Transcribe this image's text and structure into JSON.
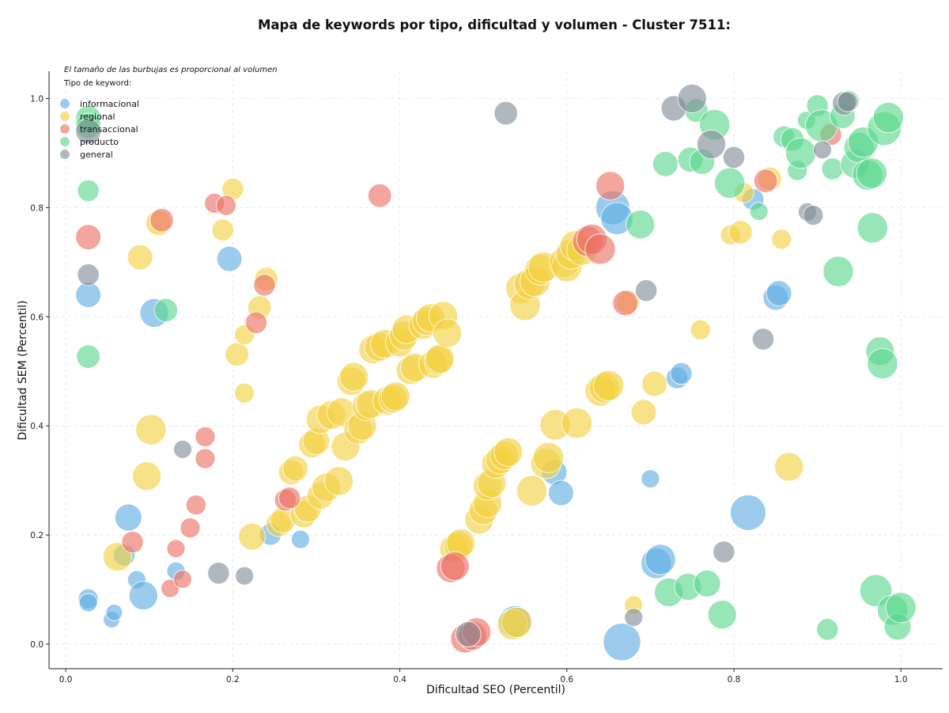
{
  "chart_data": {
    "type": "scatter",
    "title": "Mapa de keywords por tipo, dificultad y volumen - Cluster 7511:",
    "xlabel": "Dificultad SEO (Percentil)",
    "ylabel": "Dificultad SEM (Percentil)",
    "xlim": [
      -0.02,
      1.05
    ],
    "ylim": [
      -0.045,
      1.05
    ],
    "xticks": [
      "0.0",
      "0.2",
      "0.4",
      "0.6",
      "0.8",
      "1.0"
    ],
    "yticks": [
      "0.0",
      "0.2",
      "0.4",
      "0.6",
      "0.8",
      "1.0"
    ],
    "grid": true,
    "note": "El tamaño de las burbujas es proporcional al volumen",
    "legend_title": "Tipo de keyword:",
    "legend_position": "top-left",
    "series": [
      {
        "name": "informacional",
        "color": "#5DADE2",
        "points": [
          [
            0.027,
            0.083,
            0.3
          ],
          [
            0.027,
            0.076,
            0.25
          ],
          [
            0.027,
            0.64,
            0.45
          ],
          [
            0.055,
            0.045,
            0.2
          ],
          [
            0.058,
            0.058,
            0.2
          ],
          [
            0.07,
            0.163,
            0.35
          ],
          [
            0.075,
            0.232,
            0.5
          ],
          [
            0.085,
            0.118,
            0.25
          ],
          [
            0.093,
            0.089,
            0.55
          ],
          [
            0.106,
            0.607,
            0.55
          ],
          [
            0.132,
            0.134,
            0.25
          ],
          [
            0.196,
            0.706,
            0.45
          ],
          [
            0.245,
            0.201,
            0.35
          ],
          [
            0.281,
            0.192,
            0.25
          ],
          [
            0.538,
            0.041,
            0.65
          ],
          [
            0.585,
            0.315,
            0.45
          ],
          [
            0.593,
            0.277,
            0.45
          ],
          [
            0.655,
            0.8,
            0.7
          ],
          [
            0.66,
            0.78,
            0.65
          ],
          [
            0.666,
            0.004,
            0.8
          ],
          [
            0.7,
            0.303,
            0.25
          ],
          [
            0.707,
            0.148,
            0.6
          ],
          [
            0.712,
            0.155,
            0.6
          ],
          [
            0.732,
            0.488,
            0.35
          ],
          [
            0.737,
            0.496,
            0.35
          ],
          [
            0.817,
            0.241,
            0.75
          ],
          [
            0.823,
            0.815,
            0.35
          ],
          [
            0.85,
            0.635,
            0.45
          ],
          [
            0.854,
            0.643,
            0.45
          ]
        ]
      },
      {
        "name": "regional",
        "color": "#F4D03F",
        "points": [
          [
            0.062,
            0.16,
            0.55
          ],
          [
            0.089,
            0.709,
            0.45
          ],
          [
            0.097,
            0.308,
            0.55
          ],
          [
            0.102,
            0.393,
            0.6
          ],
          [
            0.111,
            0.772,
            0.45
          ],
          [
            0.188,
            0.759,
            0.35
          ],
          [
            0.2,
            0.834,
            0.35
          ],
          [
            0.205,
            0.531,
            0.4
          ],
          [
            0.214,
            0.567,
            0.3
          ],
          [
            0.214,
            0.46,
            0.3
          ],
          [
            0.223,
            0.197,
            0.5
          ],
          [
            0.232,
            0.617,
            0.4
          ],
          [
            0.24,
            0.669,
            0.4
          ],
          [
            0.255,
            0.22,
            0.45
          ],
          [
            0.26,
            0.227,
            0.45
          ],
          [
            0.27,
            0.315,
            0.45
          ],
          [
            0.275,
            0.322,
            0.45
          ],
          [
            0.285,
            0.238,
            0.5
          ],
          [
            0.29,
            0.248,
            0.5
          ],
          [
            0.295,
            0.366,
            0.5
          ],
          [
            0.3,
            0.372,
            0.5
          ],
          [
            0.305,
            0.272,
            0.5
          ],
          [
            0.312,
            0.287,
            0.55
          ],
          [
            0.305,
            0.412,
            0.55
          ],
          [
            0.318,
            0.42,
            0.55
          ],
          [
            0.327,
            0.299,
            0.55
          ],
          [
            0.33,
            0.425,
            0.55
          ],
          [
            0.335,
            0.362,
            0.55
          ],
          [
            0.342,
            0.482,
            0.55
          ],
          [
            0.345,
            0.49,
            0.55
          ],
          [
            0.35,
            0.393,
            0.55
          ],
          [
            0.355,
            0.4,
            0.55
          ],
          [
            0.36,
            0.436,
            0.55
          ],
          [
            0.365,
            0.44,
            0.55
          ],
          [
            0.368,
            0.54,
            0.55
          ],
          [
            0.375,
            0.545,
            0.55
          ],
          [
            0.382,
            0.55,
            0.55
          ],
          [
            0.385,
            0.446,
            0.55
          ],
          [
            0.392,
            0.45,
            0.55
          ],
          [
            0.395,
            0.454,
            0.55
          ],
          [
            0.4,
            0.553,
            0.55
          ],
          [
            0.405,
            0.565,
            0.55
          ],
          [
            0.408,
            0.577,
            0.55
          ],
          [
            0.413,
            0.502,
            0.55
          ],
          [
            0.418,
            0.507,
            0.55
          ],
          [
            0.428,
            0.585,
            0.55
          ],
          [
            0.432,
            0.592,
            0.55
          ],
          [
            0.437,
            0.598,
            0.55
          ],
          [
            0.44,
            0.513,
            0.55
          ],
          [
            0.446,
            0.52,
            0.55
          ],
          [
            0.448,
            0.523,
            0.55
          ],
          [
            0.452,
            0.602,
            0.55
          ],
          [
            0.457,
            0.57,
            0.55
          ],
          [
            0.465,
            0.175,
            0.55
          ],
          [
            0.47,
            0.18,
            0.55
          ],
          [
            0.473,
            0.185,
            0.55
          ],
          [
            0.495,
            0.228,
            0.55
          ],
          [
            0.5,
            0.245,
            0.55
          ],
          [
            0.505,
            0.258,
            0.55
          ],
          [
            0.505,
            0.29,
            0.55
          ],
          [
            0.51,
            0.295,
            0.55
          ],
          [
            0.515,
            0.33,
            0.55
          ],
          [
            0.52,
            0.338,
            0.55
          ],
          [
            0.525,
            0.346,
            0.55
          ],
          [
            0.53,
            0.352,
            0.55
          ],
          [
            0.535,
            0.036,
            0.6
          ],
          [
            0.54,
            0.04,
            0.6
          ],
          [
            0.545,
            0.652,
            0.6
          ],
          [
            0.55,
            0.621,
            0.6
          ],
          [
            0.555,
            0.66,
            0.6
          ],
          [
            0.558,
            0.281,
            0.6
          ],
          [
            0.562,
            0.665,
            0.6
          ],
          [
            0.568,
            0.686,
            0.6
          ],
          [
            0.572,
            0.691,
            0.6
          ],
          [
            0.575,
            0.331,
            0.6
          ],
          [
            0.578,
            0.342,
            0.6
          ],
          [
            0.586,
            0.402,
            0.6
          ],
          [
            0.597,
            0.7,
            0.6
          ],
          [
            0.6,
            0.692,
            0.6
          ],
          [
            0.605,
            0.715,
            0.6
          ],
          [
            0.61,
            0.73,
            0.6
          ],
          [
            0.612,
            0.405,
            0.6
          ],
          [
            0.618,
            0.722,
            0.6
          ],
          [
            0.64,
            0.464,
            0.6
          ],
          [
            0.645,
            0.47,
            0.6
          ],
          [
            0.65,
            0.474,
            0.6
          ],
          [
            0.673,
            0.627,
            0.4
          ],
          [
            0.68,
            0.072,
            0.25
          ],
          [
            0.692,
            0.425,
            0.45
          ],
          [
            0.705,
            0.477,
            0.45
          ],
          [
            0.76,
            0.576,
            0.3
          ],
          [
            0.796,
            0.75,
            0.3
          ],
          [
            0.808,
            0.755,
            0.4
          ],
          [
            0.812,
            0.827,
            0.3
          ],
          [
            0.843,
            0.853,
            0.4
          ],
          [
            0.857,
            0.742,
            0.3
          ],
          [
            0.866,
            0.325,
            0.55
          ]
        ]
      },
      {
        "name": "transaccional",
        "color": "#EC7063",
        "points": [
          [
            0.027,
            0.746,
            0.45
          ],
          [
            0.08,
            0.187,
            0.35
          ],
          [
            0.115,
            0.777,
            0.4
          ],
          [
            0.125,
            0.102,
            0.25
          ],
          [
            0.132,
            0.175,
            0.25
          ],
          [
            0.14,
            0.119,
            0.25
          ],
          [
            0.149,
            0.213,
            0.3
          ],
          [
            0.156,
            0.255,
            0.3
          ],
          [
            0.167,
            0.38,
            0.3
          ],
          [
            0.167,
            0.34,
            0.3
          ],
          [
            0.178,
            0.808,
            0.3
          ],
          [
            0.192,
            0.804,
            0.3
          ],
          [
            0.228,
            0.589,
            0.35
          ],
          [
            0.238,
            0.658,
            0.35
          ],
          [
            0.263,
            0.264,
            0.35
          ],
          [
            0.268,
            0.268,
            0.35
          ],
          [
            0.376,
            0.822,
            0.4
          ],
          [
            0.461,
            0.139,
            0.55
          ],
          [
            0.466,
            0.143,
            0.55
          ],
          [
            0.478,
            0.01,
            0.55
          ],
          [
            0.487,
            0.015,
            0.55
          ],
          [
            0.492,
            0.022,
            0.55
          ],
          [
            0.625,
            0.738,
            0.6
          ],
          [
            0.63,
            0.742,
            0.6
          ],
          [
            0.64,
            0.724,
            0.6
          ],
          [
            0.652,
            0.84,
            0.55
          ],
          [
            0.67,
            0.625,
            0.45
          ],
          [
            0.838,
            0.849,
            0.4
          ],
          [
            0.916,
            0.934,
            0.35
          ]
        ]
      },
      {
        "name": "producto",
        "color": "#58D68D",
        "points": [
          [
            0.027,
            0.964,
            0.45
          ],
          [
            0.027,
            0.95,
            0.45
          ],
          [
            0.027,
            0.831,
            0.35
          ],
          [
            0.027,
            0.527,
            0.4
          ],
          [
            0.12,
            0.612,
            0.4
          ],
          [
            0.688,
            0.769,
            0.55
          ],
          [
            0.718,
            0.88,
            0.45
          ],
          [
            0.722,
            0.095,
            0.55
          ],
          [
            0.745,
            0.105,
            0.5
          ],
          [
            0.748,
            0.888,
            0.45
          ],
          [
            0.755,
            0.978,
            0.4
          ],
          [
            0.762,
            0.884,
            0.45
          ],
          [
            0.768,
            0.111,
            0.5
          ],
          [
            0.777,
            0.952,
            0.6
          ],
          [
            0.786,
            0.054,
            0.55
          ],
          [
            0.795,
            0.845,
            0.6
          ],
          [
            0.83,
            0.793,
            0.25
          ],
          [
            0.86,
            0.93,
            0.35
          ],
          [
            0.87,
            0.925,
            0.4
          ],
          [
            0.876,
            0.868,
            0.3
          ],
          [
            0.88,
            0.9,
            0.6
          ],
          [
            0.887,
            0.96,
            0.25
          ],
          [
            0.9,
            0.987,
            0.35
          ],
          [
            0.905,
            0.95,
            0.65
          ],
          [
            0.912,
            0.027,
            0.35
          ],
          [
            0.918,
            0.871,
            0.35
          ],
          [
            0.925,
            0.683,
            0.6
          ],
          [
            0.93,
            0.968,
            0.45
          ],
          [
            0.937,
            0.995,
            0.35
          ],
          [
            0.945,
            0.88,
            0.55
          ],
          [
            0.95,
            0.91,
            0.6
          ],
          [
            0.955,
            0.92,
            0.6
          ],
          [
            0.96,
            0.86,
            0.6
          ],
          [
            0.965,
            0.863,
            0.6
          ],
          [
            0.966,
            0.763,
            0.6
          ],
          [
            0.97,
            0.098,
            0.65
          ],
          [
            0.975,
            0.537,
            0.55
          ],
          [
            0.978,
            0.514,
            0.6
          ],
          [
            0.98,
            0.945,
            0.7
          ],
          [
            0.985,
            0.965,
            0.6
          ],
          [
            0.99,
            0.062,
            0.6
          ],
          [
            0.996,
            0.032,
            0.5
          ],
          [
            1.0,
            0.067,
            0.6
          ]
        ]
      },
      {
        "name": "general",
        "color": "#808B96",
        "points": [
          [
            0.027,
            0.677,
            0.35
          ],
          [
            0.027,
            0.94,
            0.45
          ],
          [
            0.14,
            0.357,
            0.25
          ],
          [
            0.183,
            0.13,
            0.35
          ],
          [
            0.214,
            0.125,
            0.25
          ],
          [
            0.482,
            0.018,
            0.45
          ],
          [
            0.527,
            0.973,
            0.4
          ],
          [
            0.68,
            0.049,
            0.25
          ],
          [
            0.695,
            0.648,
            0.35
          ],
          [
            0.728,
            0.982,
            0.45
          ],
          [
            0.75,
            1.0,
            0.55
          ],
          [
            0.773,
            0.916,
            0.55
          ],
          [
            0.788,
            0.169,
            0.35
          ],
          [
            0.8,
            0.892,
            0.35
          ],
          [
            0.835,
            0.559,
            0.35
          ],
          [
            0.888,
            0.792,
            0.25
          ],
          [
            0.895,
            0.786,
            0.3
          ],
          [
            0.906,
            0.906,
            0.25
          ],
          [
            0.932,
            0.991,
            0.4
          ],
          [
            0.936,
            0.994,
            0.3
          ]
        ]
      }
    ]
  }
}
